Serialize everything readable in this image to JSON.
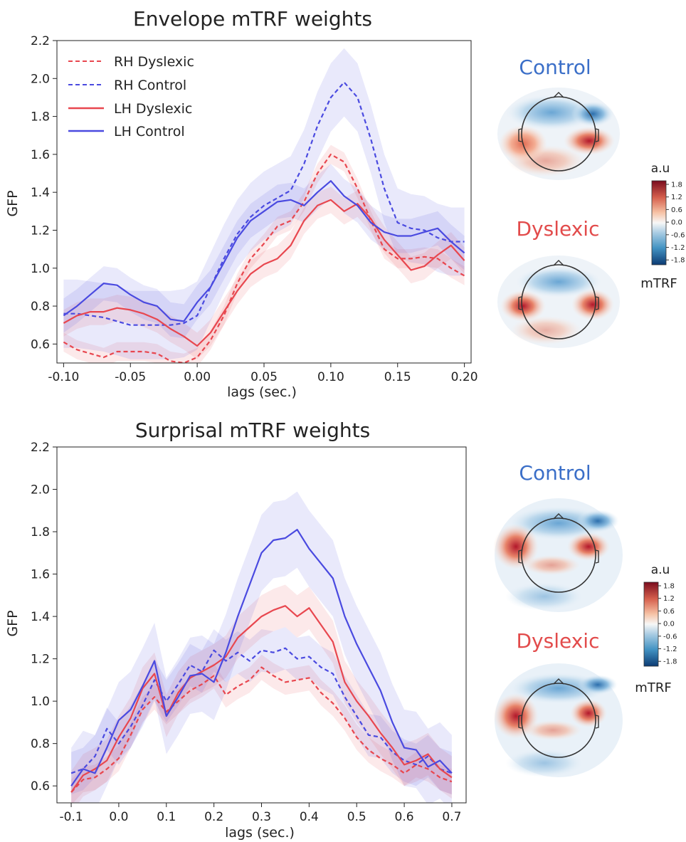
{
  "chart_data": [
    {
      "type": "line",
      "title": "Envelope mTRF weights",
      "xlabel": "lags (sec.)",
      "ylabel": "GFP",
      "xlim": [
        -0.105,
        0.205
      ],
      "ylim": [
        0.5,
        2.2
      ],
      "xticks": [
        -0.1,
        -0.05,
        0.0,
        0.05,
        0.1,
        0.15,
        0.2
      ],
      "xtick_labels": [
        "-0.10",
        "-0.05",
        "0.00",
        "0.05",
        "0.10",
        "0.15",
        "0.20"
      ],
      "yticks": [
        0.6,
        0.8,
        1.0,
        1.2,
        1.4,
        1.6,
        1.8,
        2.0,
        2.2
      ],
      "ytick_labels": [
        "0.6",
        "0.8",
        "1.0",
        "1.2",
        "1.4",
        "1.6",
        "1.8",
        "2.0",
        "2.2"
      ],
      "legend_position": "upper-left",
      "series": [
        {
          "name": "RH Dyslexic",
          "color": "#e8474f",
          "dash": "dashed",
          "band": 0.05,
          "x": [
            -0.1,
            -0.09,
            -0.08,
            -0.07,
            -0.06,
            -0.05,
            -0.04,
            -0.03,
            -0.02,
            -0.01,
            0.0,
            0.01,
            0.02,
            0.03,
            0.04,
            0.05,
            0.06,
            0.07,
            0.08,
            0.09,
            0.1,
            0.11,
            0.12,
            0.13,
            0.14,
            0.15,
            0.16,
            0.17,
            0.18,
            0.19,
            0.2
          ],
          "y": [
            0.61,
            0.57,
            0.55,
            0.53,
            0.56,
            0.56,
            0.56,
            0.55,
            0.51,
            0.5,
            0.53,
            0.62,
            0.75,
            0.92,
            1.05,
            1.13,
            1.22,
            1.25,
            1.35,
            1.5,
            1.6,
            1.56,
            1.42,
            1.25,
            1.1,
            1.05,
            1.05,
            1.06,
            1.05,
            1.0,
            0.96
          ]
        },
        {
          "name": "RH Control",
          "color": "#4a4ae0",
          "dash": "dashed",
          "band": 0.18,
          "x": [
            -0.1,
            -0.09,
            -0.08,
            -0.07,
            -0.06,
            -0.05,
            -0.04,
            -0.03,
            -0.02,
            -0.01,
            0.0,
            0.01,
            0.02,
            0.03,
            0.04,
            0.05,
            0.06,
            0.07,
            0.08,
            0.09,
            0.1,
            0.11,
            0.12,
            0.13,
            0.14,
            0.15,
            0.16,
            0.17,
            0.18,
            0.19,
            0.2
          ],
          "y": [
            0.76,
            0.76,
            0.75,
            0.74,
            0.72,
            0.7,
            0.7,
            0.7,
            0.7,
            0.71,
            0.75,
            0.9,
            1.05,
            1.18,
            1.27,
            1.33,
            1.37,
            1.41,
            1.55,
            1.75,
            1.9,
            1.98,
            1.9,
            1.68,
            1.42,
            1.24,
            1.21,
            1.2,
            1.16,
            1.14,
            1.14
          ]
        },
        {
          "name": "LH Dyslexic",
          "color": "#e8474f",
          "dash": "solid",
          "band": 0.07,
          "x": [
            -0.1,
            -0.09,
            -0.08,
            -0.07,
            -0.06,
            -0.05,
            -0.04,
            -0.03,
            -0.02,
            -0.01,
            0.0,
            0.01,
            0.02,
            0.03,
            0.04,
            0.05,
            0.06,
            0.07,
            0.08,
            0.09,
            0.1,
            0.11,
            0.12,
            0.13,
            0.14,
            0.15,
            0.16,
            0.17,
            0.18,
            0.19,
            0.2
          ],
          "y": [
            0.71,
            0.75,
            0.77,
            0.77,
            0.79,
            0.78,
            0.76,
            0.73,
            0.68,
            0.64,
            0.59,
            0.66,
            0.77,
            0.88,
            0.97,
            1.02,
            1.05,
            1.12,
            1.25,
            1.33,
            1.36,
            1.3,
            1.34,
            1.26,
            1.15,
            1.07,
            0.99,
            1.01,
            1.07,
            1.12,
            1.04
          ]
        },
        {
          "name": "LH Control",
          "color": "#4a4ae0",
          "dash": "solid",
          "band": 0.09,
          "x": [
            -0.1,
            -0.09,
            -0.08,
            -0.07,
            -0.06,
            -0.05,
            -0.04,
            -0.03,
            -0.02,
            -0.01,
            0.0,
            0.01,
            0.02,
            0.03,
            0.04,
            0.05,
            0.06,
            0.07,
            0.08,
            0.09,
            0.1,
            0.11,
            0.12,
            0.13,
            0.14,
            0.15,
            0.16,
            0.17,
            0.18,
            0.19,
            0.2
          ],
          "y": [
            0.75,
            0.8,
            0.86,
            0.92,
            0.91,
            0.86,
            0.82,
            0.8,
            0.73,
            0.72,
            0.82,
            0.9,
            1.03,
            1.16,
            1.25,
            1.3,
            1.35,
            1.36,
            1.33,
            1.4,
            1.46,
            1.38,
            1.33,
            1.24,
            1.19,
            1.17,
            1.17,
            1.19,
            1.21,
            1.14,
            1.08
          ]
        }
      ]
    },
    {
      "type": "line",
      "title": "Surprisal mTRF weights",
      "xlabel": "lags (sec.)",
      "ylabel": "GFP",
      "xlim": [
        -0.13,
        0.73
      ],
      "ylim": [
        0.52,
        2.2
      ],
      "xticks": [
        -0.1,
        0.0,
        0.1,
        0.2,
        0.3,
        0.4,
        0.5,
        0.6,
        0.7
      ],
      "xtick_labels": [
        "-0.1",
        "0.0",
        "0.1",
        "0.2",
        "0.3",
        "0.4",
        "0.5",
        "0.6",
        "0.7"
      ],
      "yticks": [
        0.6,
        0.8,
        1.0,
        1.2,
        1.4,
        1.6,
        1.8,
        2.0,
        2.2
      ],
      "ytick_labels": [
        "0.6",
        "0.8",
        "1.0",
        "1.2",
        "1.4",
        "1.6",
        "1.8",
        "2.0",
        "2.2"
      ],
      "series": [
        {
          "name": "",
          "color": "#e8474f",
          "dash": "dashed",
          "band": 0.06,
          "x": [
            -0.1,
            -0.075,
            -0.05,
            -0.025,
            0.0,
            0.025,
            0.05,
            0.075,
            0.1,
            0.125,
            0.15,
            0.175,
            0.2,
            0.225,
            0.25,
            0.275,
            0.3,
            0.325,
            0.35,
            0.375,
            0.4,
            0.425,
            0.45,
            0.475,
            0.5,
            0.525,
            0.55,
            0.575,
            0.6,
            0.625,
            0.65,
            0.675,
            0.7
          ],
          "y": [
            0.57,
            0.63,
            0.64,
            0.68,
            0.73,
            0.84,
            0.96,
            1.02,
            0.95,
            1.0,
            1.05,
            1.08,
            1.12,
            1.03,
            1.07,
            1.1,
            1.16,
            1.12,
            1.09,
            1.1,
            1.11,
            1.04,
            0.99,
            0.92,
            0.83,
            0.77,
            0.73,
            0.7,
            0.66,
            0.7,
            0.68,
            0.64,
            0.62
          ]
        },
        {
          "name": "",
          "color": "#4a4ae0",
          "dash": "dashed",
          "band": 0.1,
          "x": [
            -0.1,
            -0.075,
            -0.05,
            -0.025,
            0.0,
            0.025,
            0.05,
            0.075,
            0.1,
            0.125,
            0.15,
            0.175,
            0.2,
            0.225,
            0.25,
            0.275,
            0.3,
            0.325,
            0.35,
            0.375,
            0.4,
            0.425,
            0.45,
            0.475,
            0.5,
            0.525,
            0.55,
            0.575,
            0.6,
            0.625,
            0.65,
            0.675,
            0.7
          ],
          "y": [
            0.66,
            0.68,
            0.74,
            0.87,
            0.8,
            0.88,
            0.98,
            1.1,
            1.0,
            1.08,
            1.17,
            1.14,
            1.24,
            1.19,
            1.23,
            1.19,
            1.24,
            1.23,
            1.25,
            1.2,
            1.21,
            1.16,
            1.13,
            1.02,
            0.93,
            0.84,
            0.83,
            0.76,
            0.72,
            0.7,
            0.74,
            0.68,
            0.66
          ]
        },
        {
          "name": "",
          "color": "#e8474f",
          "dash": "solid",
          "band": 0.1,
          "x": [
            -0.1,
            -0.075,
            -0.05,
            -0.025,
            0.0,
            0.025,
            0.05,
            0.075,
            0.1,
            0.125,
            0.15,
            0.175,
            0.2,
            0.225,
            0.25,
            0.275,
            0.3,
            0.325,
            0.35,
            0.375,
            0.4,
            0.425,
            0.45,
            0.475,
            0.5,
            0.525,
            0.55,
            0.575,
            0.6,
            0.625,
            0.65,
            0.675,
            0.7
          ],
          "y": [
            0.57,
            0.65,
            0.68,
            0.72,
            0.83,
            0.92,
            1.06,
            1.13,
            0.93,
            1.04,
            1.11,
            1.14,
            1.17,
            1.21,
            1.3,
            1.35,
            1.4,
            1.43,
            1.45,
            1.4,
            1.44,
            1.36,
            1.28,
            1.09,
            1.0,
            0.93,
            0.85,
            0.78,
            0.7,
            0.72,
            0.75,
            0.68,
            0.64
          ]
        },
        {
          "name": "",
          "color": "#4a4ae0",
          "dash": "solid",
          "band": 0.18,
          "x": [
            -0.1,
            -0.075,
            -0.05,
            -0.025,
            0.0,
            0.025,
            0.05,
            0.075,
            0.1,
            0.125,
            0.15,
            0.175,
            0.2,
            0.225,
            0.25,
            0.275,
            0.3,
            0.325,
            0.35,
            0.375,
            0.4,
            0.425,
            0.45,
            0.475,
            0.5,
            0.525,
            0.55,
            0.575,
            0.6,
            0.625,
            0.65,
            0.675,
            0.7
          ],
          "y": [
            0.6,
            0.68,
            0.66,
            0.78,
            0.91,
            0.96,
            1.07,
            1.19,
            0.93,
            1.02,
            1.12,
            1.13,
            1.09,
            1.23,
            1.4,
            1.55,
            1.7,
            1.76,
            1.77,
            1.81,
            1.72,
            1.65,
            1.58,
            1.4,
            1.27,
            1.16,
            1.05,
            0.9,
            0.78,
            0.77,
            0.69,
            0.72,
            0.66
          ]
        }
      ]
    }
  ],
  "topomaps": [
    {
      "control_label": "Control",
      "dyslexic_label": "Dyslexic",
      "colorbar_title": "a.u",
      "colorbar_caption": "mTRF",
      "colorbar_ticks": [
        "1.8",
        "1.2",
        "0.6",
        "0.0",
        "-0.6",
        "-1.2",
        "-1.8"
      ]
    },
    {
      "control_label": "Control",
      "dyslexic_label": "Dyslexic",
      "colorbar_title": "a.u",
      "colorbar_caption": "mTRF",
      "colorbar_ticks": [
        "1.8",
        "1.2",
        "0.6",
        "0.0",
        "-0.6",
        "-1.2",
        "-1.8"
      ]
    }
  ],
  "colors": {
    "control": "#3b6fc8",
    "dyslexic": "#e24b4b"
  }
}
